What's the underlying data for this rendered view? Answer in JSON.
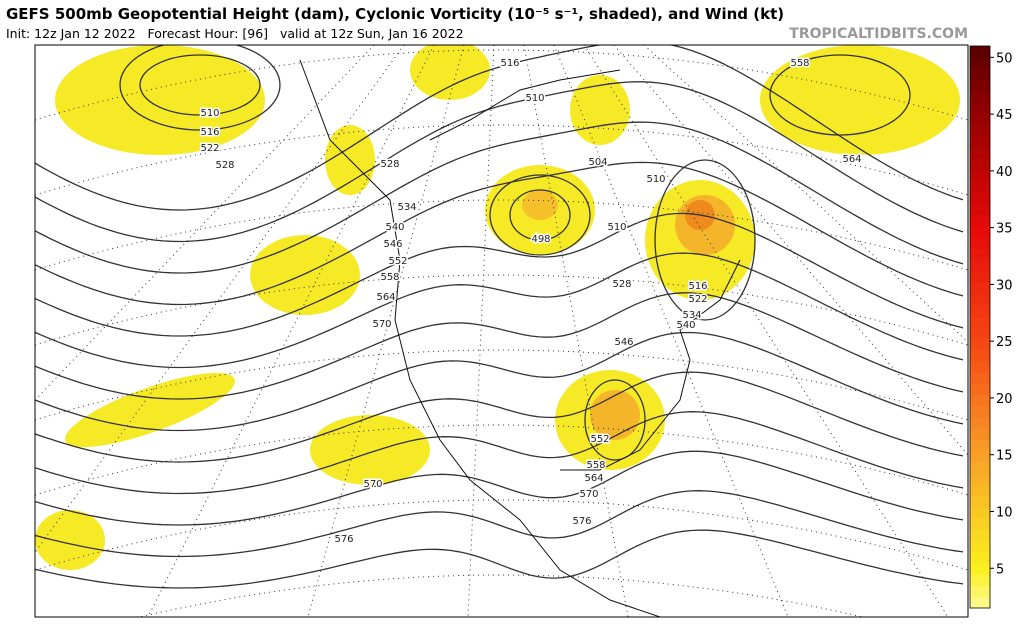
{
  "header": {
    "title": "GEFS 500mb Geopotential Height (dam), Cyclonic Vorticity (10⁻⁵ s⁻¹, shaded), and Wind (kt)",
    "subtitle": "Init: 12z Jan 12 2022   Forecast Hour: [96]   valid at 12z Sun, Jan 16 2022",
    "watermark": "TROPICALTIDBITS.COM"
  },
  "map": {
    "contour_labels": [
      "510",
      "516",
      "522",
      "528",
      "516",
      "510",
      "504",
      "510",
      "498",
      "510",
      "528",
      "528",
      "534",
      "540",
      "546",
      "552",
      "558",
      "564",
      "570",
      "516",
      "522",
      "534",
      "540",
      "546",
      "552",
      "558",
      "564",
      "570",
      "576",
      "570",
      "576",
      "558",
      "564"
    ]
  },
  "colorbar": {
    "range": [
      1.5,
      51
    ],
    "ticks": [
      5,
      10,
      15,
      20,
      25,
      30,
      35,
      40,
      45,
      50
    ]
  }
}
